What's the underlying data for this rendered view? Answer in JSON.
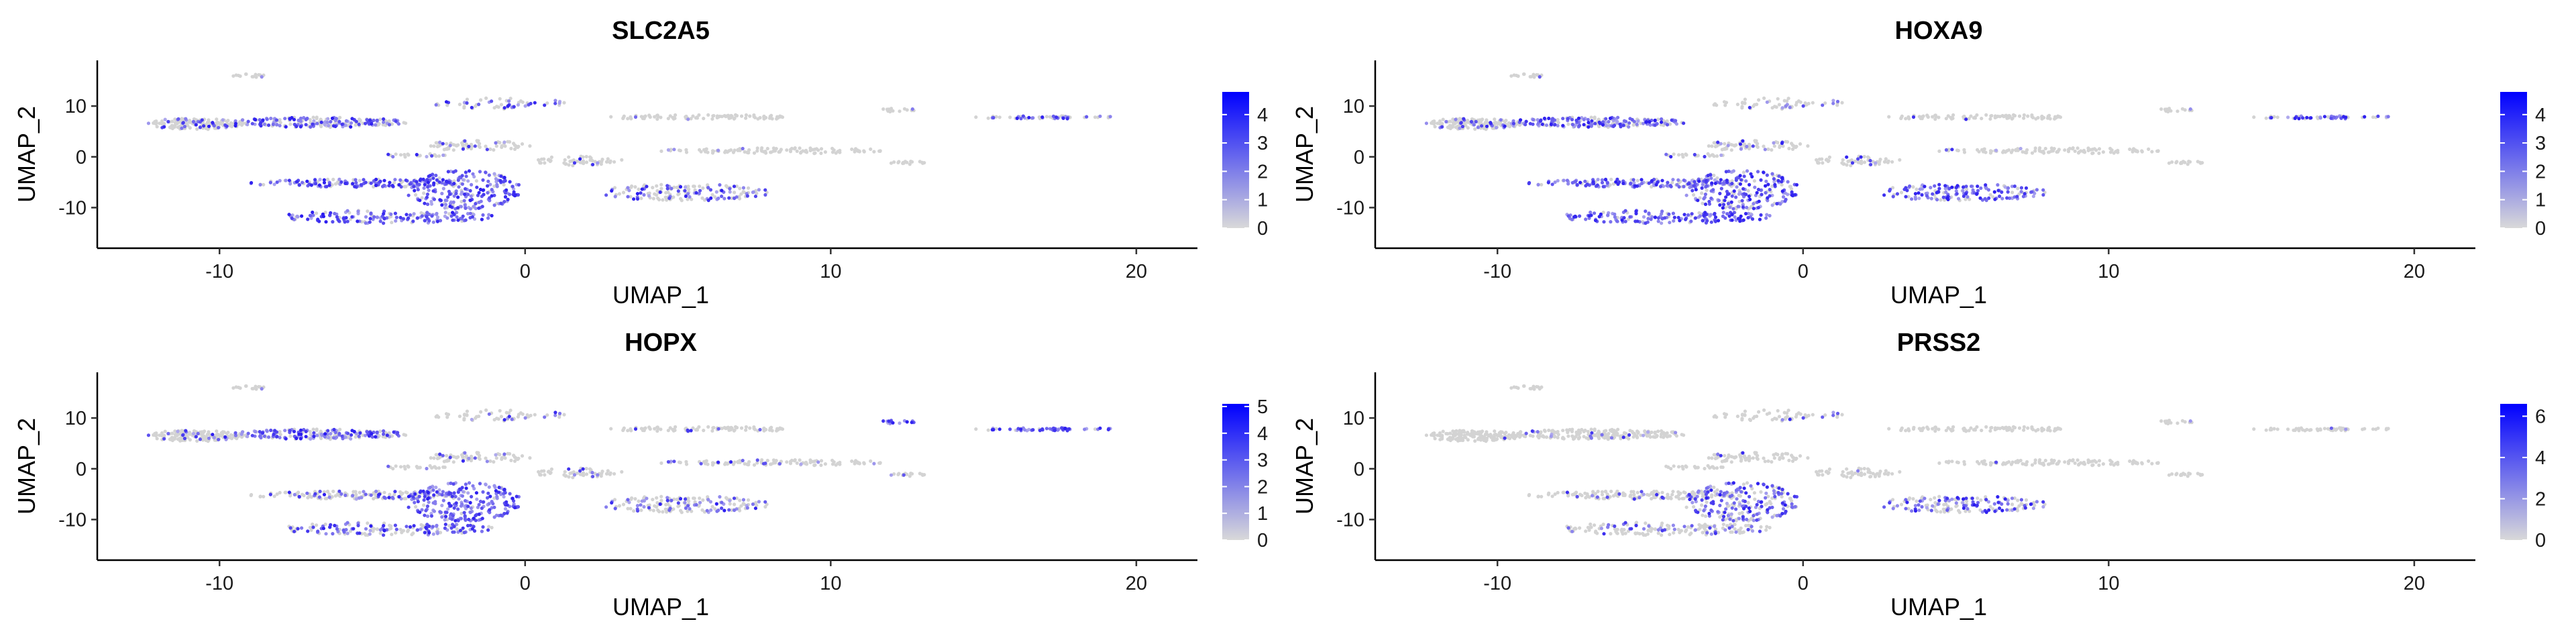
{
  "chart_data": [
    {
      "type": "scatter",
      "title": "SLC2A5",
      "xlabel": "UMAP_1",
      "ylabel": "UMAP_2",
      "xlim": [
        -14,
        22
      ],
      "ylim": [
        -18,
        19
      ],
      "xticks": [
        -10,
        0,
        10,
        20
      ],
      "yticks": [
        -10,
        0,
        10
      ],
      "legend": {
        "position": "right",
        "min": 0,
        "max": 4.8,
        "ticks": [
          0,
          1,
          2,
          3,
          4
        ],
        "low_color": "#d9d9d9",
        "high_color": "#0000ff"
      },
      "expression": {
        "c1": 0.25,
        "c2": 0.5,
        "c3": 0.15,
        "c4": 0.7,
        "c5": 0.8,
        "c6": 0.85,
        "c7": 0.1,
        "c8": 0.35,
        "c9": 0.05,
        "c10": 0.05,
        "c11": 0.05,
        "c12": 0.4,
        "c13": 0.35,
        "c14": 0.05,
        "c15": 0.1,
        "c16": 0.25
      }
    },
    {
      "type": "scatter",
      "title": "HOXA9",
      "xlabel": "UMAP_1",
      "ylabel": "UMAP_2",
      "xlim": [
        -14,
        22
      ],
      "ylim": [
        -18,
        19
      ],
      "xticks": [
        -10,
        0,
        10,
        20
      ],
      "yticks": [
        -10,
        0,
        10
      ],
      "legend": {
        "position": "right",
        "min": 0,
        "max": 4.8,
        "ticks": [
          0,
          1,
          2,
          3,
          4
        ],
        "low_color": "#d9d9d9",
        "high_color": "#0000ff"
      },
      "expression": {
        "c1": 0.2,
        "c2": 0.6,
        "c3": 0.15,
        "c4": 0.75,
        "c5": 0.85,
        "c6": 0.75,
        "c7": 0.15,
        "c8": 0.15,
        "c9": 0.05,
        "c10": 0.05,
        "c11": 0.05,
        "c12": 0.5,
        "c13": 0.75,
        "c14": 0.05,
        "c15": 0.15,
        "c16": 0.2
      }
    },
    {
      "type": "scatter",
      "title": "HOPX",
      "xlabel": "UMAP_1",
      "ylabel": "UMAP_2",
      "xlim": [
        -14,
        22
      ],
      "ylim": [
        -18,
        19
      ],
      "xticks": [
        -10,
        0,
        10,
        20
      ],
      "yticks": [
        -10,
        0,
        10
      ],
      "legend": {
        "position": "right",
        "min": 0,
        "max": 5.1,
        "ticks": [
          0,
          1,
          2,
          3,
          4,
          5
        ],
        "low_color": "#d9d9d9",
        "high_color": "#0000ff"
      },
      "expression": {
        "c1": 0.15,
        "c2": 0.55,
        "c3": 0.1,
        "c4": 0.25,
        "c5": 0.5,
        "c6": 0.95,
        "c7": 0.1,
        "c8": 0.15,
        "c9": 0.1,
        "c10": 0.1,
        "c11": 0.95,
        "c12": 0.85,
        "c13": 0.3,
        "c14": 0.1,
        "c15": 0.2,
        "c16": 0.1
      }
    },
    {
      "type": "scatter",
      "title": "PRSS2",
      "xlabel": "UMAP_1",
      "ylabel": "UMAP_2",
      "xlim": [
        -14,
        22
      ],
      "ylim": [
        -18,
        19
      ],
      "xticks": [
        -10,
        0,
        10,
        20
      ],
      "yticks": [
        -10,
        0,
        10
      ],
      "legend": {
        "position": "right",
        "min": 0,
        "max": 6.6,
        "ticks": [
          0,
          2,
          4,
          6
        ],
        "low_color": "#d9d9d9",
        "high_color": "#0000ff"
      },
      "expression": {
        "c1": 0.02,
        "c2": 0.05,
        "c3": 0.02,
        "c4": 0.1,
        "c5": 0.2,
        "c6": 0.6,
        "c7": 0.02,
        "c8": 0.1,
        "c9": 0.02,
        "c10": 0.02,
        "c11": 0.02,
        "c12": 0.02,
        "c13": 0.45,
        "c14": 0.02,
        "c15": 0.05,
        "c16": 0.02
      }
    }
  ],
  "clusters": [
    {
      "id": "c1",
      "cx": -10.8,
      "cy": 6.5,
      "rx": 1.6,
      "ry": 1.1,
      "n": 160
    },
    {
      "id": "c2",
      "cx": -6.8,
      "cy": 6.8,
      "rx": 3.0,
      "ry": 1.0,
      "n": 200
    },
    {
      "id": "c3",
      "cx": -9.0,
      "cy": 16.0,
      "rx": 0.6,
      "ry": 0.35,
      "n": 14
    },
    {
      "id": "c4",
      "cx": -5.5,
      "cy": -5.2,
      "rx": 3.5,
      "ry": 0.8,
      "n": 150
    },
    {
      "id": "c5",
      "cx": -4.5,
      "cy": -11.8,
      "rx": 3.5,
      "ry": 1.3,
      "n": 160
    },
    {
      "id": "c6",
      "cx": -2.0,
      "cy": -6.5,
      "rx": 1.9,
      "ry": 3.8,
      "n": 230
    },
    {
      "id": "c7",
      "cx": -1.5,
      "cy": 2.2,
      "rx": 1.8,
      "ry": 1.0,
      "n": 70
    },
    {
      "id": "c8",
      "cx": -0.8,
      "cy": 10.5,
      "rx": 2.2,
      "ry": 1.1,
      "n": 60
    },
    {
      "id": "c9",
      "cx": 5.8,
      "cy": 7.8,
      "rx": 3.2,
      "ry": 0.5,
      "n": 90
    },
    {
      "id": "c10",
      "cx": 8.2,
      "cy": 1.2,
      "rx": 3.8,
      "ry": 0.55,
      "n": 110
    },
    {
      "id": "c11",
      "cx": 12.2,
      "cy": 9.2,
      "rx": 0.9,
      "ry": 0.35,
      "n": 16
    },
    {
      "id": "c12",
      "cx": 17.0,
      "cy": 7.8,
      "rx": 2.4,
      "ry": 0.3,
      "n": 55
    },
    {
      "id": "c13",
      "cx": 5.2,
      "cy": -7.0,
      "rx": 2.8,
      "ry": 1.7,
      "n": 160
    },
    {
      "id": "c14",
      "cx": 12.6,
      "cy": -1.2,
      "rx": 0.8,
      "ry": 0.3,
      "n": 16
    },
    {
      "id": "c15",
      "cx": 1.8,
      "cy": -0.8,
      "rx": 1.5,
      "ry": 1.0,
      "n": 55
    },
    {
      "id": "c16",
      "cx": -3.6,
      "cy": 0.3,
      "rx": 1.0,
      "ry": 0.45,
      "n": 22
    }
  ]
}
